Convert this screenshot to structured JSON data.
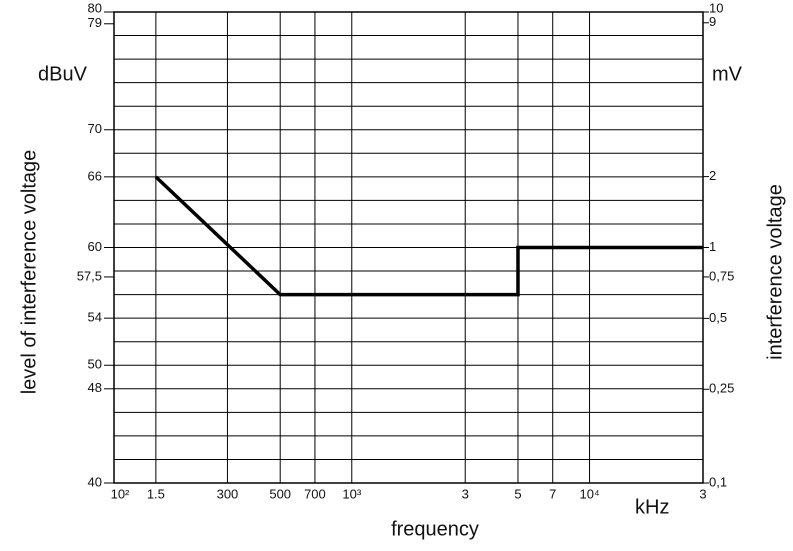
{
  "chart_data": {
    "type": "line",
    "xlabel": "frequency",
    "xunit": "kHz",
    "ylabel": "level of interference voltage",
    "yunit": "dBuV",
    "y2label": "interference voltage",
    "y2unit": "mV",
    "xscale": "log",
    "xlim": [
      100,
      30000
    ],
    "xticks": [
      {
        "value": 100,
        "label": "10²"
      },
      {
        "value": 150,
        "label": "1.5"
      },
      300,
      500,
      700,
      {
        "value": 1000,
        "label": "10³"
      },
      {
        "value": 3000,
        "label": "3"
      },
      {
        "value": 5000,
        "label": "5"
      },
      {
        "value": 7000,
        "label": "7"
      },
      {
        "value": 10000,
        "label": "10⁴"
      },
      {
        "value": 30000,
        "label": "3"
      }
    ],
    "ylim": [
      40,
      80
    ],
    "yticks": [
      80,
      79,
      70,
      66,
      60,
      {
        "value": 57.5,
        "label": "57,5"
      },
      54,
      50,
      48,
      40
    ],
    "ygrid": [
      40,
      42,
      44,
      46,
      48,
      50,
      52,
      54,
      56,
      58,
      60,
      62,
      64,
      66,
      68,
      70,
      72,
      74,
      76,
      78,
      80
    ],
    "y2scale": "log",
    "y2lim": [
      0.1,
      10
    ],
    "y2ticks": [
      10,
      9,
      2,
      1,
      {
        "value": 0.75,
        "label": "0,75"
      },
      {
        "value": 0.5,
        "label": "0,5"
      },
      {
        "value": 0.25,
        "label": "0,25"
      },
      {
        "value": 0.1,
        "label": "0,1"
      }
    ],
    "grid": true,
    "series": [
      {
        "color": "#000000",
        "x": [
          150,
          500,
          5000,
          5000,
          30000
        ],
        "values": [
          66,
          56,
          56,
          60,
          60
        ]
      }
    ]
  }
}
